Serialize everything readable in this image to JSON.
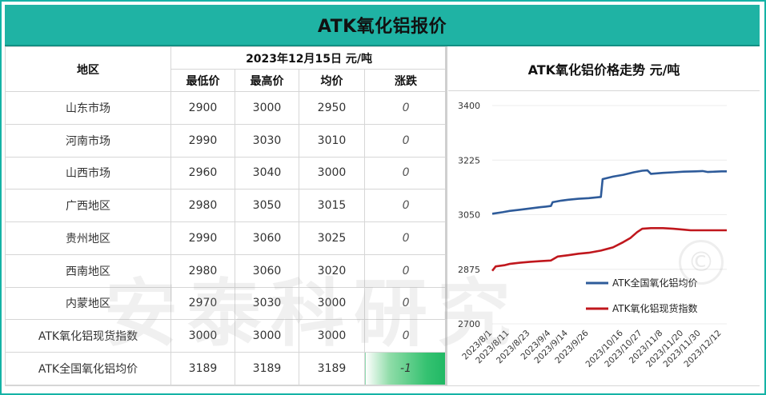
{
  "page_title": "ATK氧化铝报价",
  "table": {
    "region_header": "地区",
    "date_header": "2023年12月15日  元/吨",
    "columns": [
      "最低价",
      "最高价",
      "均价",
      "涨跌"
    ],
    "rows": [
      {
        "region": "山东市场",
        "low": "2900",
        "high": "3000",
        "avg": "2950",
        "change": "0"
      },
      {
        "region": "河南市场",
        "low": "2990",
        "high": "3030",
        "avg": "3010",
        "change": "0"
      },
      {
        "region": "山西市场",
        "low": "2960",
        "high": "3040",
        "avg": "3000",
        "change": "0"
      },
      {
        "region": "广西地区",
        "low": "2980",
        "high": "3050",
        "avg": "3015",
        "change": "0"
      },
      {
        "region": "贵州地区",
        "low": "2990",
        "high": "3060",
        "avg": "3025",
        "change": "0"
      },
      {
        "region": "西南地区",
        "low": "2980",
        "high": "3060",
        "avg": "3020",
        "change": "0"
      },
      {
        "region": "内蒙地区",
        "low": "2970",
        "high": "3030",
        "avg": "3000",
        "change": "0"
      },
      {
        "region": "ATK氧化铝现货指数",
        "low": "3000",
        "high": "3000",
        "avg": "3000",
        "change": "0"
      },
      {
        "region": "ATK全国氧化铝均价",
        "low": "3189",
        "high": "3189",
        "avg": "3189",
        "change": "-1"
      }
    ]
  },
  "watermark_text": "安泰科研究",
  "copyright_mark": "©",
  "colors": {
    "header_teal": "#1fb3a4",
    "series_blue": "#2e5b9a",
    "series_red": "#c0171d",
    "change_down_green": "#35c271"
  },
  "chart_data": {
    "type": "line",
    "title": "ATK氧化铝价格走势  元/吨",
    "ylim": [
      2700,
      3400
    ],
    "yticks": [
      2700,
      2875,
      3050,
      3225,
      3400
    ],
    "x_tick_labels": [
      "2023/8/1",
      "2023/8/11",
      "2023/8/23",
      "2023/9/4",
      "2023/9/14",
      "2023/9/26",
      "2023/10/16",
      "2023/10/27",
      "2023/11/8",
      "2023/11/20",
      "2023/11/30",
      "2023/12/12"
    ],
    "x_range": [
      "2023/8/1",
      "2023/12/15"
    ],
    "grid": "horizontal",
    "legend_position": "right",
    "series": [
      {
        "name": "ATK全国氧化铝均价",
        "color": "#2e5b9a",
        "points": [
          [
            "2023/8/1",
            3053
          ],
          [
            "2023/8/7",
            3058
          ],
          [
            "2023/8/11",
            3062
          ],
          [
            "2023/8/17",
            3066
          ],
          [
            "2023/8/23",
            3070
          ],
          [
            "2023/8/29",
            3074
          ],
          [
            "2023/9/1",
            3076
          ],
          [
            "2023/9/4",
            3078
          ],
          [
            "2023/9/5",
            3090
          ],
          [
            "2023/9/10",
            3095
          ],
          [
            "2023/9/14",
            3098
          ],
          [
            "2023/9/20",
            3101
          ],
          [
            "2023/9/26",
            3103
          ],
          [
            "2023/10/3",
            3107
          ],
          [
            "2023/10/4",
            3164
          ],
          [
            "2023/10/10",
            3172
          ],
          [
            "2023/10/16",
            3178
          ],
          [
            "2023/10/22",
            3186
          ],
          [
            "2023/10/27",
            3191
          ],
          [
            "2023/10/30",
            3192
          ],
          [
            "2023/11/1",
            3181
          ],
          [
            "2023/11/8",
            3184
          ],
          [
            "2023/11/14",
            3186
          ],
          [
            "2023/11/20",
            3188
          ],
          [
            "2023/11/27",
            3189
          ],
          [
            "2023/12/1",
            3190
          ],
          [
            "2023/12/4",
            3187
          ],
          [
            "2023/12/8",
            3188
          ],
          [
            "2023/12/12",
            3189
          ],
          [
            "2023/12/15",
            3189
          ]
        ]
      },
      {
        "name": "ATK氧化铝现货指数",
        "color": "#c0171d",
        "points": [
          [
            "2023/8/1",
            2870
          ],
          [
            "2023/8/3",
            2884
          ],
          [
            "2023/8/8",
            2888
          ],
          [
            "2023/8/11",
            2892
          ],
          [
            "2023/8/17",
            2896
          ],
          [
            "2023/8/23",
            2899
          ],
          [
            "2023/8/29",
            2901
          ],
          [
            "2023/9/4",
            2903
          ],
          [
            "2023/9/8",
            2916
          ],
          [
            "2023/9/14",
            2920
          ],
          [
            "2023/9/20",
            2925
          ],
          [
            "2023/9/26",
            2928
          ],
          [
            "2023/10/3",
            2935
          ],
          [
            "2023/10/10",
            2945
          ],
          [
            "2023/10/16",
            2962
          ],
          [
            "2023/10/20",
            2975
          ],
          [
            "2023/10/24",
            2994
          ],
          [
            "2023/10/27",
            3005
          ],
          [
            "2023/11/1",
            3007
          ],
          [
            "2023/11/8",
            3007
          ],
          [
            "2023/11/14",
            3005
          ],
          [
            "2023/11/20",
            3002
          ],
          [
            "2023/11/24",
            3000
          ],
          [
            "2023/11/30",
            3000
          ],
          [
            "2023/12/6",
            3000
          ],
          [
            "2023/12/12",
            3000
          ],
          [
            "2023/12/15",
            3000
          ]
        ]
      }
    ]
  }
}
